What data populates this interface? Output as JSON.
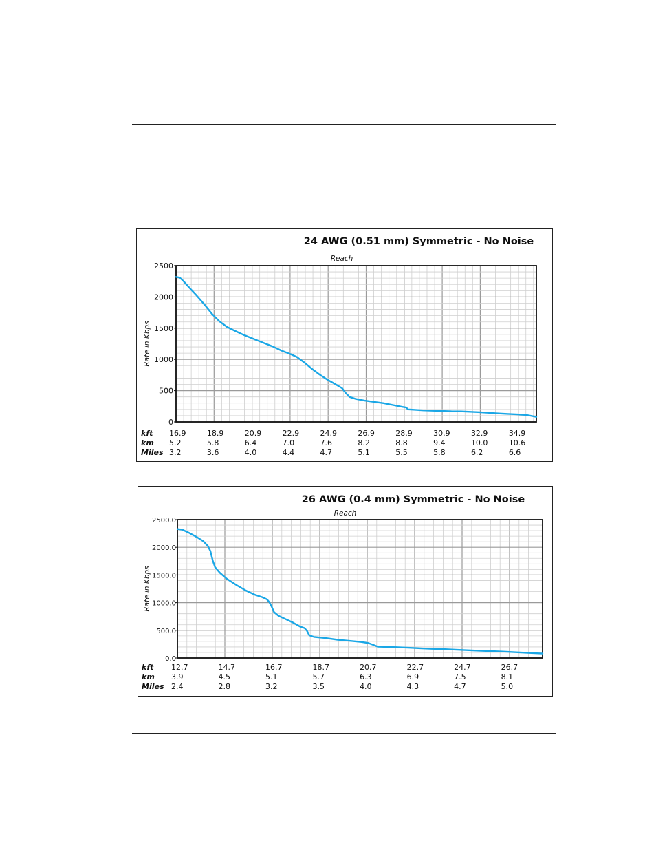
{
  "chart_data": [
    {
      "type": "line",
      "title": "24 AWG (0.51 mm) Symmetric - No Noise",
      "subtitle": "Reach",
      "ylabel": "Rate in Kbps",
      "ylim": [
        0,
        2500
      ],
      "y_ticks": [
        "0",
        "500",
        "1000",
        "1500",
        "2000",
        "2500"
      ],
      "xlim": [
        16.9,
        36.0
      ],
      "grid": true,
      "axis_rows": [
        {
          "label": "kft",
          "values": [
            "16.9",
            "18.9",
            "20.9",
            "22.9",
            "24.9",
            "26.9",
            "28.9",
            "30.9",
            "32.9",
            "34.9"
          ]
        },
        {
          "label": "km",
          "values": [
            "5.2",
            "5.8",
            "6.4",
            "7.0",
            "7.6",
            "8.2",
            "8.8",
            "9.4",
            "10.0",
            "10.6"
          ]
        },
        {
          "label": "Miles",
          "values": [
            "3.2",
            "3.6",
            "4.0",
            "4.4",
            "4.7",
            "5.1",
            "5.5",
            "5.8",
            "6.2",
            "6.6"
          ]
        }
      ],
      "series": [
        {
          "color": "#1aa7e6",
          "x": [
            16.9,
            17.1,
            17.3,
            17.6,
            18.0,
            18.4,
            18.8,
            19.2,
            19.6,
            20.0,
            20.5,
            21.0,
            21.5,
            22.0,
            22.5,
            23.0,
            23.3,
            23.7,
            24.1,
            24.5,
            24.9,
            25.3,
            25.7,
            25.9,
            26.1,
            26.4,
            26.9,
            27.4,
            27.9,
            28.4,
            28.9,
            29.1,
            29.2,
            29.5,
            30.0,
            30.5,
            31.0,
            31.5,
            32.0,
            32.5,
            33.0,
            33.5,
            34.0,
            34.5,
            35.0,
            35.5,
            36.0
          ],
          "values": [
            2320,
            2310,
            2250,
            2150,
            2020,
            1880,
            1730,
            1610,
            1520,
            1460,
            1390,
            1330,
            1270,
            1210,
            1140,
            1080,
            1040,
            950,
            850,
            760,
            680,
            610,
            540,
            460,
            400,
            370,
            340,
            320,
            300,
            270,
            240,
            230,
            200,
            195,
            185,
            180,
            175,
            170,
            168,
            162,
            155,
            145,
            135,
            128,
            120,
            110,
            80
          ]
        }
      ]
    },
    {
      "type": "line",
      "title": "26 AWG (0.4 mm) Symmetric - No Noise",
      "subtitle": "Reach",
      "ylabel": "Rate in Kbps",
      "ylim": [
        0,
        2500
      ],
      "y_ticks": [
        "0.0",
        "500.0",
        "1000.0",
        "1500.0",
        "2000.0",
        "2500.0"
      ],
      "xlim": [
        12.7,
        28.2
      ],
      "grid": true,
      "axis_rows": [
        {
          "label": "kft",
          "values": [
            "12.7",
            "14.7",
            "16.7",
            "18.7",
            "20.7",
            "22.7",
            "24.7",
            "26.7"
          ]
        },
        {
          "label": "km",
          "values": [
            "3.9",
            "4.5",
            "5.1",
            "5.7",
            "6.3",
            "6.9",
            "7.5",
            "8.1"
          ]
        },
        {
          "label": "Miles",
          "values": [
            "2.4",
            "2.8",
            "3.2",
            "3.5",
            "4.0",
            "4.3",
            "4.7",
            "5.0"
          ]
        }
      ],
      "series": [
        {
          "color": "#1aa7e6",
          "x": [
            12.7,
            12.9,
            13.2,
            13.5,
            13.8,
            14.0,
            14.1,
            14.2,
            14.3,
            14.5,
            14.8,
            15.2,
            15.6,
            16.0,
            16.3,
            16.5,
            16.6,
            16.7,
            16.8,
            17.0,
            17.3,
            17.6,
            17.9,
            18.1,
            18.2,
            18.3,
            18.5,
            19.0,
            19.5,
            20.0,
            20.5,
            20.8,
            21.0,
            21.2,
            21.6,
            22.0,
            22.5,
            23.0,
            23.5,
            24.0,
            24.5,
            25.0,
            25.5,
            26.0,
            26.5,
            27.0,
            27.5,
            28.2
          ],
          "values": [
            2330,
            2320,
            2260,
            2190,
            2110,
            2020,
            1930,
            1760,
            1640,
            1540,
            1430,
            1320,
            1220,
            1140,
            1100,
            1060,
            1010,
            930,
            830,
            760,
            700,
            640,
            570,
            540,
            490,
            410,
            380,
            360,
            330,
            310,
            290,
            270,
            240,
            205,
            200,
            195,
            185,
            175,
            165,
            160,
            150,
            140,
            132,
            124,
            116,
            105,
            95,
            80
          ]
        }
      ]
    }
  ]
}
